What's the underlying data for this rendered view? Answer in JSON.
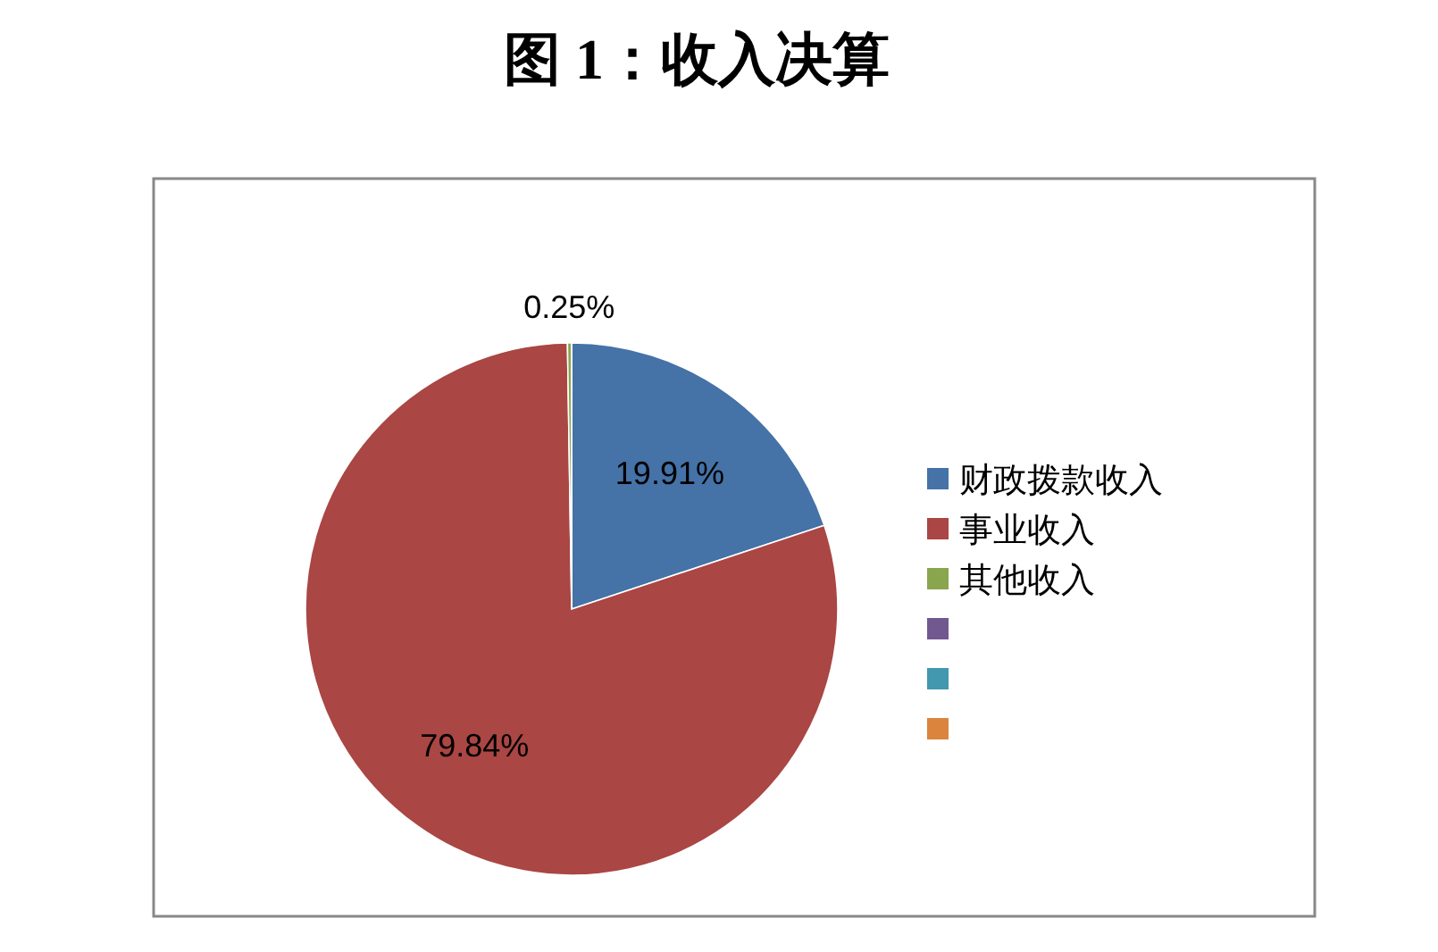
{
  "chart_data": {
    "type": "pie",
    "title": "图 1：收入决算",
    "categories": [
      "财政拨款收入",
      "事业收入",
      "其他收入",
      null,
      null,
      null
    ],
    "values": [
      19.91,
      79.84,
      0.25,
      0,
      0,
      0
    ],
    "colors": [
      "#4572a7",
      "#aa4643",
      "#89a54e",
      "#71588f",
      "#4198af",
      "#db843d"
    ],
    "value_labels": [
      "19.91%",
      "79.84%",
      "0.25%",
      null,
      null,
      null
    ],
    "legend": "right"
  }
}
